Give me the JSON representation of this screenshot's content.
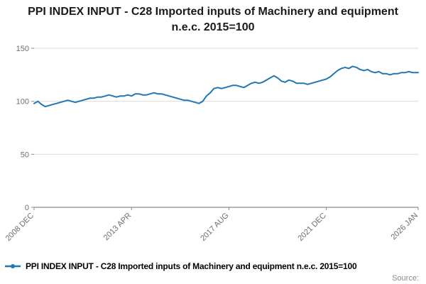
{
  "title": "PPI INDEX INPUT - C28 Imported inputs of Machinery and equipment n.e.c. 2015=100",
  "legend": {
    "label": "PPI INDEX INPUT - C28 Imported inputs of Machinery and equipment n.e.c. 2015=100",
    "marker": "line-with-dot"
  },
  "source_label": "Source:",
  "colors": {
    "line": "#1f77b4",
    "grid": "#d9d9d9",
    "axis": "#8c8c8c",
    "tick_text": "#6e6e6e"
  },
  "chart_data": {
    "type": "line",
    "title": "PPI INDEX INPUT - C28 Imported inputs of Machinery and equipment n.e.c. 2015=100",
    "xlabel": "",
    "ylabel": "",
    "ylim": [
      0,
      150
    ],
    "yticks": [
      0,
      50,
      100,
      150
    ],
    "grid": true,
    "legend_position": "bottom",
    "x_start": "2008 DEC",
    "x_end": "2026 JAN",
    "x_total_months": 205,
    "x_step_months": 2,
    "xticks": [
      {
        "label": "2008 DEC",
        "month": 0
      },
      {
        "label": "2013 APR",
        "month": 52
      },
      {
        "label": "2017 AUG",
        "month": 104
      },
      {
        "label": "2021 DEC",
        "month": 156
      },
      {
        "label": "2026 JAN",
        "month": 205
      }
    ],
    "line_color": "#1f77b4",
    "values": [
      98,
      100,
      97,
      95,
      96,
      97,
      98,
      99,
      100,
      101,
      100,
      99,
      100,
      101,
      102,
      103,
      103,
      104,
      104,
      105,
      106,
      105,
      104,
      105,
      105,
      106,
      105,
      107,
      107,
      106,
      106,
      107,
      108,
      107,
      107,
      106,
      105,
      104,
      103,
      102,
      101,
      101,
      100,
      99,
      98,
      100,
      105,
      108,
      112,
      113,
      112,
      113,
      114,
      115,
      115,
      114,
      113,
      115,
      117,
      118,
      117,
      118,
      120,
      122,
      124,
      122,
      119,
      118,
      120,
      119,
      117,
      117,
      117,
      116,
      117,
      118,
      119,
      120,
      121,
      123,
      126,
      129,
      131,
      132,
      131,
      133,
      132,
      130,
      129,
      130,
      128,
      127,
      128,
      126,
      126,
      125,
      126,
      126,
      127,
      127,
      128,
      127,
      127,
      127
    ]
  }
}
